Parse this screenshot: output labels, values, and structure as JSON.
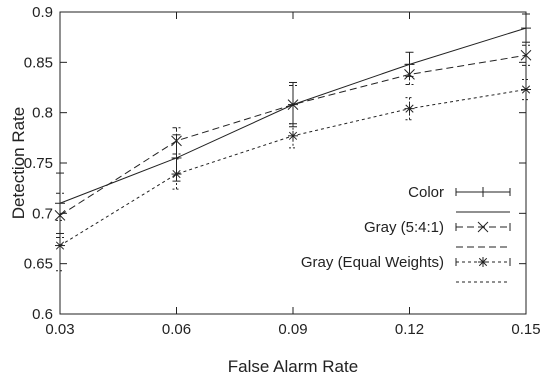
{
  "chart_data": {
    "type": "line",
    "title": "",
    "xlabel": "False Alarm Rate",
    "ylabel": "Detection Rate",
    "xlim": [
      0.03,
      0.15
    ],
    "ylim": [
      0.6,
      0.9
    ],
    "x_ticks": [
      "0.03",
      "0.06",
      "0.09",
      "0.12",
      "0.15"
    ],
    "y_ticks": [
      "0.6",
      "0.65",
      "0.7",
      "0.75",
      "0.8",
      "0.85",
      "0.9"
    ],
    "grid": false,
    "legend_position": "bottom-right",
    "x": [
      0.03,
      0.06,
      0.09,
      0.12,
      0.15
    ],
    "series": [
      {
        "name": "Color",
        "marker": "+",
        "line_style": "solid",
        "values": [
          0.71,
          0.755,
          0.808,
          0.848,
          0.884
        ],
        "error": [
          0.03,
          0.023,
          0.022,
          0.012,
          0.014
        ]
      },
      {
        "name": "Gray (5:4:1)",
        "marker": "x",
        "line_style": "dashed",
        "values": [
          0.698,
          0.772,
          0.808,
          0.838,
          0.857
        ],
        "error": [
          0.022,
          0.013,
          0.019,
          0.01,
          0.01
        ]
      },
      {
        "name": "Gray (Equal Weights)",
        "marker": "asterisk",
        "line_style": "dotted",
        "values": [
          0.668,
          0.739,
          0.777,
          0.804,
          0.823
        ],
        "error": [
          0.025,
          0.015,
          0.012,
          0.011,
          0.01
        ]
      }
    ]
  }
}
